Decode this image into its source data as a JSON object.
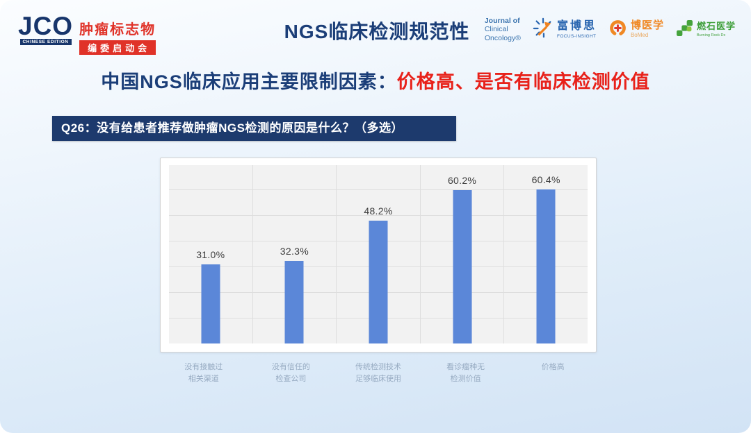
{
  "header": {
    "jco": {
      "acronym": "JCO",
      "edition": "CHINESE EDITION",
      "event_line1": "肿瘤标志物",
      "event_line2": "编委启动会"
    },
    "page_title": "NGS临床检测规范性",
    "logos": [
      {
        "name": "journal-of-clinical-oncology",
        "lines": [
          "Journal of",
          "Clinical",
          "Oncology®"
        ]
      },
      {
        "name": "focus-insight",
        "cn": "富博思",
        "en": "FOCUS-INSIGHT"
      },
      {
        "name": "bomed",
        "cn": "博医学",
        "en": "BoMed"
      },
      {
        "name": "burning-rock",
        "cn": "燃石医学",
        "en": "Burning Rock Dx"
      }
    ]
  },
  "headline": {
    "prefix": "中国NGS临床应用主要限制因素：",
    "highlight": "价格高、是否有临床检测价值"
  },
  "question_banner": "Q26：没有给患者推荐做肿瘤NGS检测的原因是什么？（多选）",
  "chart_data": {
    "type": "bar",
    "categories": [
      "没有接触过\n相关渠道",
      "没有信任的\n检查公司",
      "传统检测技术\n足够临床使用",
      "看诊瘤种无\n检测价值",
      "价格高"
    ],
    "values": [
      31.0,
      32.3,
      48.2,
      60.2,
      60.4
    ],
    "value_labels": [
      "31.0%",
      "32.3%",
      "48.2%",
      "60.2%",
      "60.4%"
    ],
    "title": "",
    "xlabel": "",
    "ylabel": "",
    "ylim": [
      0,
      70
    ],
    "grid": true,
    "legend": false,
    "bar_color": "#5b87d8"
  },
  "colors": {
    "headline_navy": "#1b3e78",
    "headline_red": "#e8211a",
    "banner_bg": "#1d3a6d",
    "bar_blue": "#5b87d8",
    "slide_bg_bottom": "#d2e3f5"
  }
}
